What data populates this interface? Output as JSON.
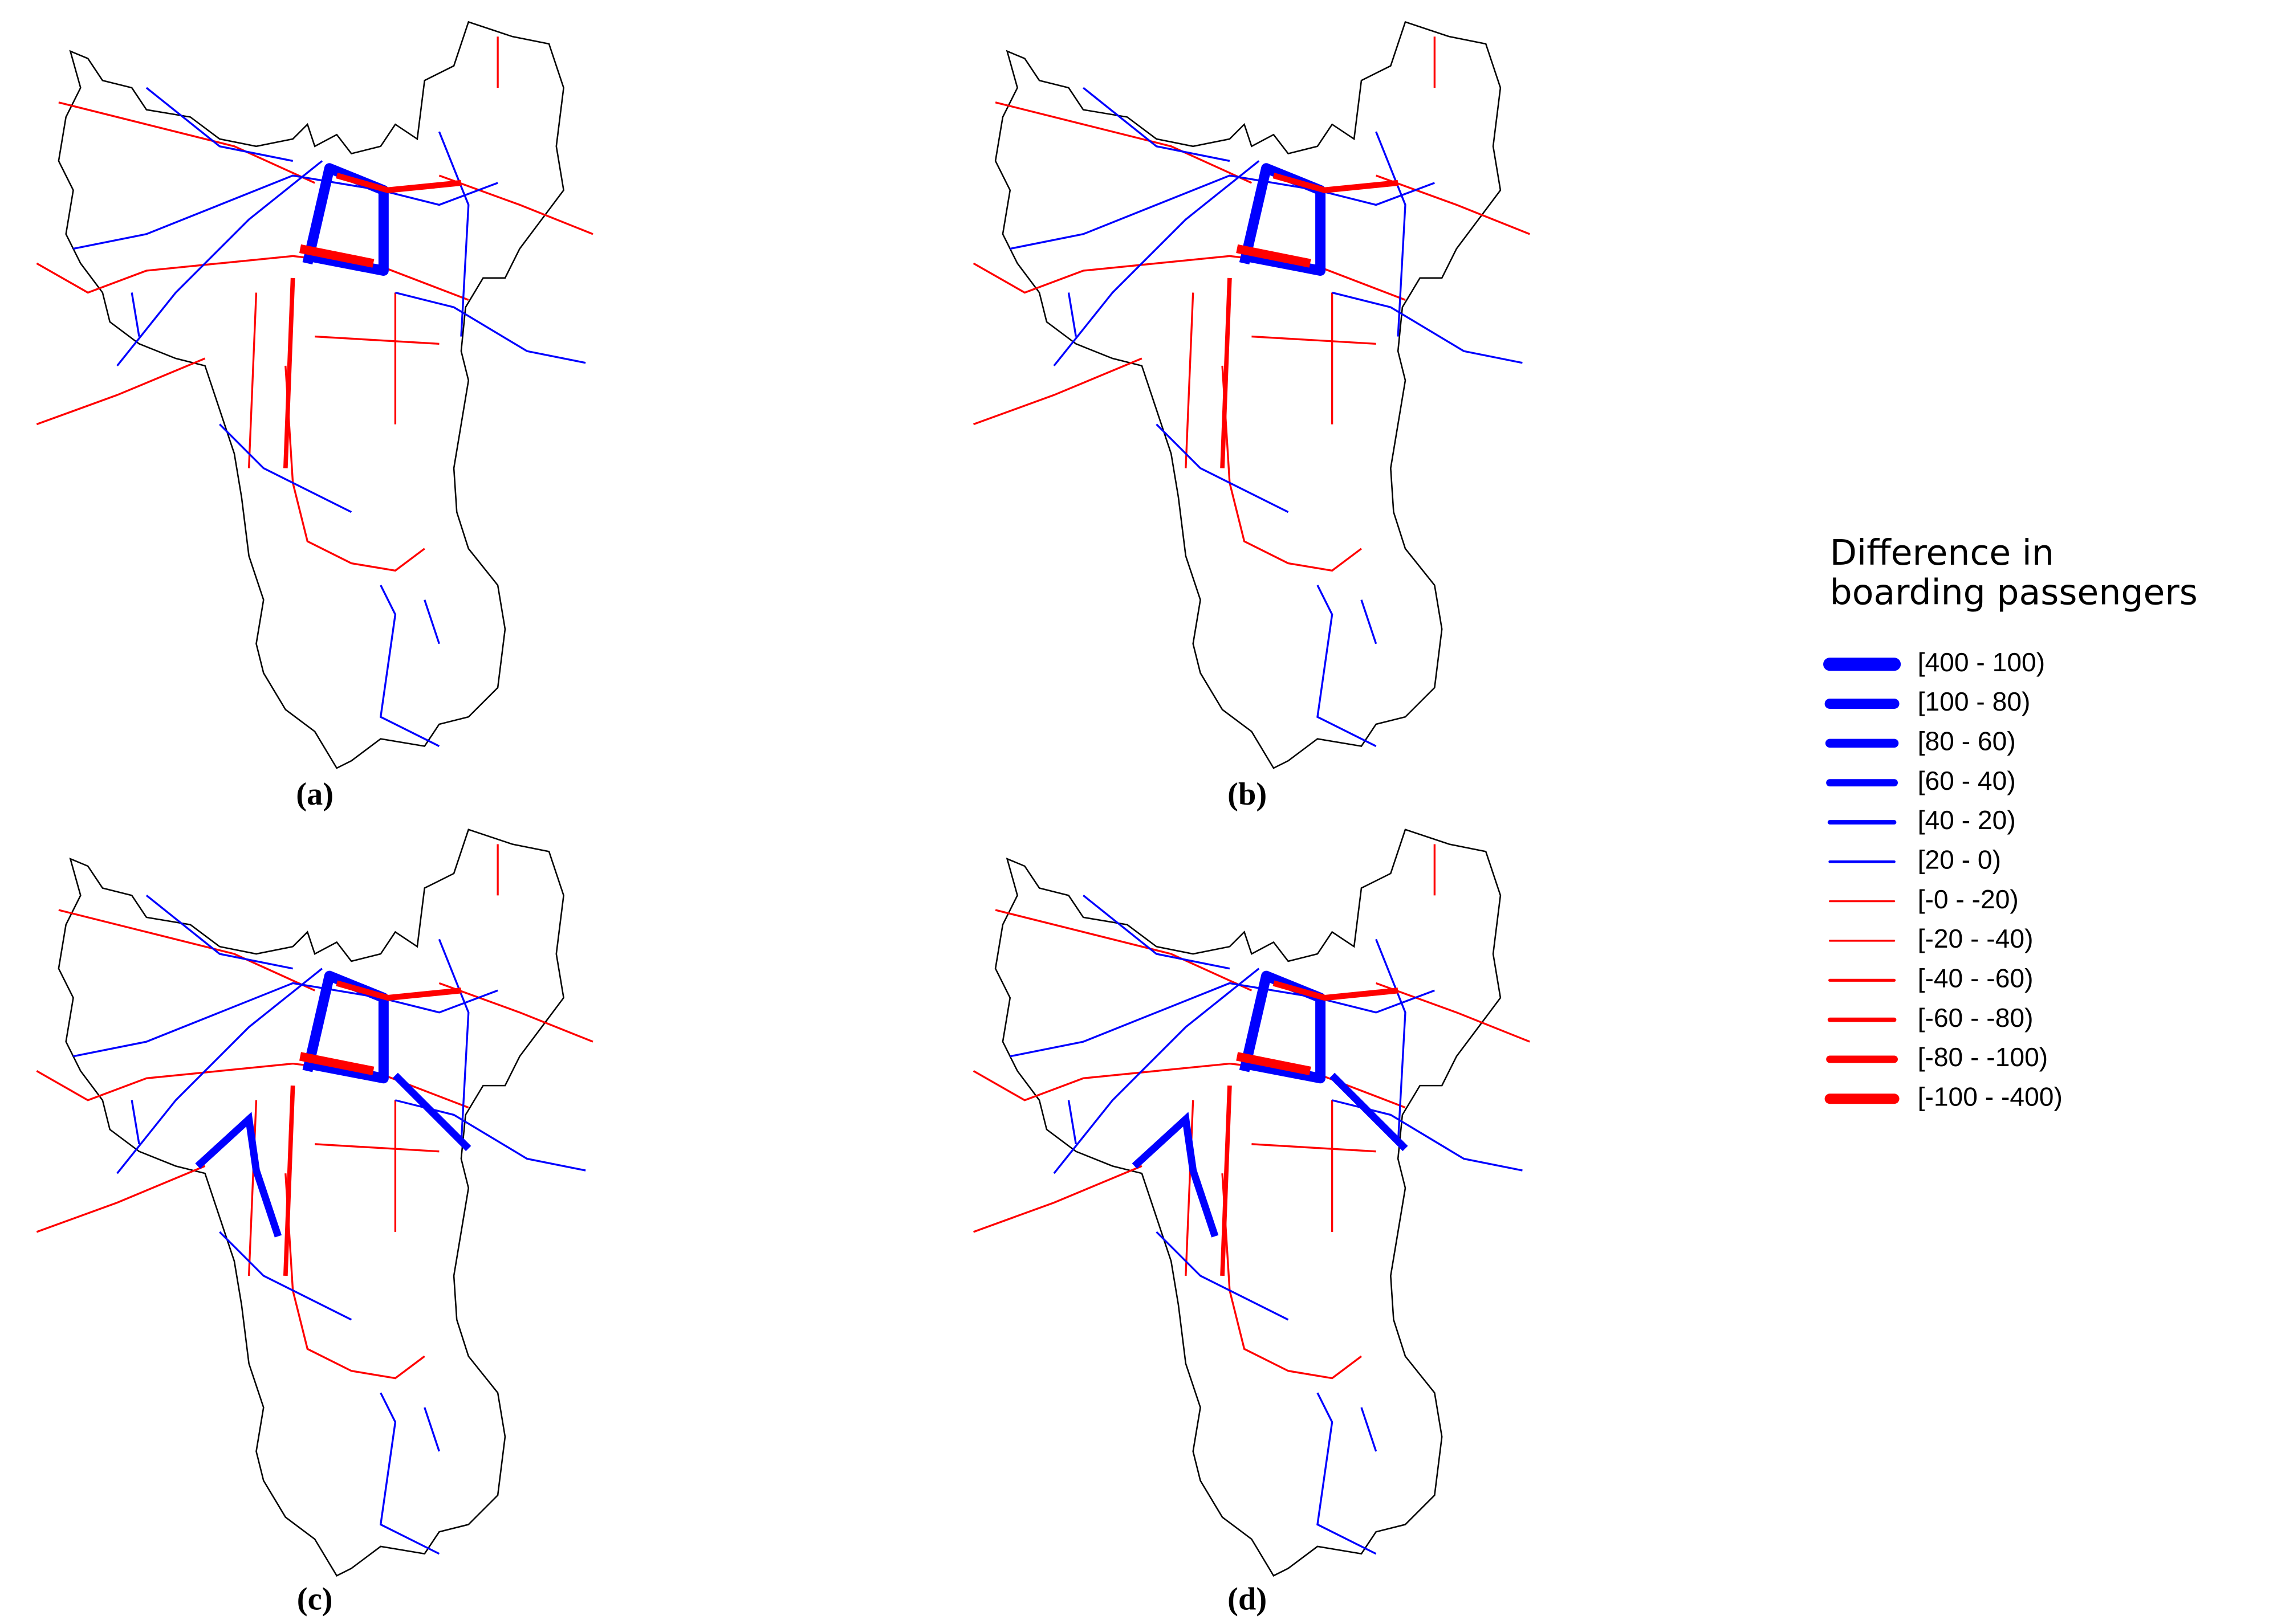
{
  "panels": [
    {
      "caption": "(a)"
    },
    {
      "caption": "(b)"
    },
    {
      "caption": "(c)"
    },
    {
      "caption": "(d)"
    }
  ],
  "legend": {
    "title": [
      "Difference in",
      "boarding passengers"
    ],
    "items": [
      {
        "label": "[400 - 100)",
        "color": "#0000ff"
      },
      {
        "label": "[100 - 80)",
        "color": "#0000ff"
      },
      {
        "label": "[80 - 60)",
        "color": "#0000ff"
      },
      {
        "label": "[60 - 40)",
        "color": "#0000ff"
      },
      {
        "label": "[40 - 20)",
        "color": "#0000ff"
      },
      {
        "label": "[20 - 0)",
        "color": "#0000ff"
      },
      {
        "label": "[-0 - -20)",
        "color": "#ff0000"
      },
      {
        "label": "[-20 - -40)",
        "color": "#ff0000"
      },
      {
        "label": "[-40 - -60)",
        "color": "#ff0000"
      },
      {
        "label": "[-60 - -80)",
        "color": "#ff0000"
      },
      {
        "label": "[-80 - -100)",
        "color": "#ff0000"
      },
      {
        "label": "[-100 - -400)",
        "color": "#ff0000"
      }
    ]
  }
}
